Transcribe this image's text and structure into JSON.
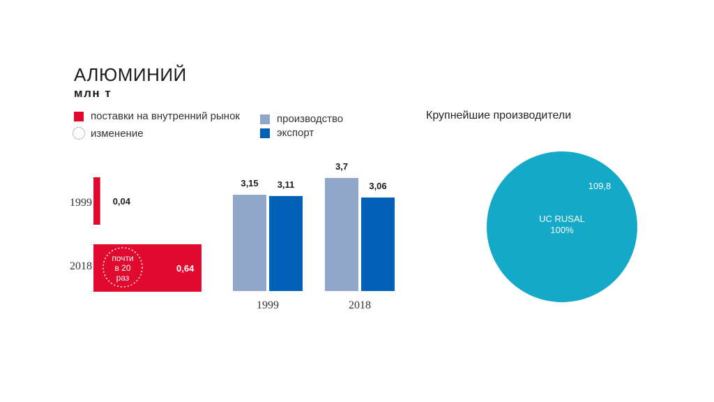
{
  "header": {
    "title": "АЛЮМИНИЙ",
    "subtitle": "млн т"
  },
  "legend": {
    "domestic": "поставки на внутренний рынок",
    "change": "изменение",
    "production": "производство",
    "export": "экспорт"
  },
  "colors": {
    "domestic": "#e10a2e",
    "production": "#8fa6c9",
    "export": "#0060b5",
    "pie": "#14a8c9"
  },
  "chart_data": [
    {
      "type": "bar",
      "orientation": "horizontal",
      "series": [
        {
          "name": "поставки на внутренний рынок",
          "values": [
            0.04,
            0.64
          ]
        }
      ],
      "categories": [
        "1999",
        "2018"
      ],
      "value_labels": [
        "0,04",
        "0,64"
      ],
      "annotation": [
        "почти",
        "в 20",
        "раз"
      ]
    },
    {
      "type": "bar",
      "categories": [
        "1999",
        "2018"
      ],
      "series": [
        {
          "name": "производство",
          "values": [
            3.15,
            3.7
          ],
          "labels": [
            "3,15",
            "3,7"
          ]
        },
        {
          "name": "экспорт",
          "values": [
            3.11,
            3.06
          ],
          "labels": [
            "3,11",
            "3,06"
          ]
        }
      ]
    },
    {
      "type": "pie",
      "title": "Крупнейшие производители",
      "slices": [
        {
          "name": "UC RUSAL",
          "percent": "100%",
          "value": 109.8,
          "value_label": "109,8"
        }
      ]
    }
  ]
}
